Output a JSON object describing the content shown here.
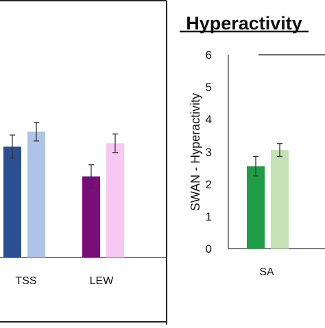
{
  "chart_data": [
    {
      "type": "bar",
      "title": "",
      "xlabel": "",
      "ylabel": "",
      "ylim": [
        0,
        6
      ],
      "categories": [
        "TSS",
        "LEW"
      ],
      "series": [
        {
          "values": [
            3.35,
            2.45
          ],
          "errors": [
            0.35,
            0.35
          ],
          "colors": [
            "#2b4f93",
            "#7a0d7a"
          ]
        },
        {
          "values": [
            3.8,
            3.45
          ],
          "errors": [
            0.28,
            0.28
          ],
          "colors": [
            "#aec3e8",
            "#f7c8f2"
          ]
        }
      ],
      "grid": false,
      "legend": "none"
    },
    {
      "type": "bar",
      "title": "Hyperactivity",
      "xlabel": "",
      "ylabel": "SWAN - Hyperactivity",
      "ylim": [
        0,
        6
      ],
      "yticks": [
        "0",
        "1",
        "2",
        "3",
        "4",
        "5",
        "6"
      ],
      "categories": [
        "SA"
      ],
      "series": [
        {
          "values": [
            2.55
          ],
          "errors": [
            0.3
          ],
          "colors": [
            "#1f9e48"
          ]
        },
        {
          "values": [
            3.05
          ],
          "errors": [
            0.2
          ],
          "colors": [
            "#c4e2b4"
          ]
        }
      ],
      "grid": false,
      "legend": "none"
    }
  ]
}
